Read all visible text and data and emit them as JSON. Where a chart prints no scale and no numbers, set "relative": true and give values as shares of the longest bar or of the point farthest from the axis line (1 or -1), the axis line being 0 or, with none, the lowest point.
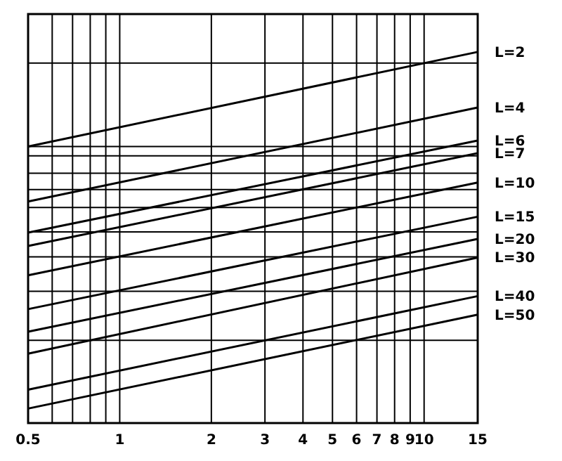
{
  "chart_data": {
    "type": "line",
    "relative": true,
    "log": "x",
    "grid": "x",
    "marker": "none",
    "line_style": "solid",
    "xlim": [
      0.5,
      15
    ],
    "xticks": [
      0.5,
      {
        "value": 0.6,
        "label": null
      },
      {
        "value": 0.7,
        "label": null
      },
      {
        "value": 0.8,
        "label": null
      },
      {
        "value": 0.9,
        "label": null
      },
      1,
      2,
      3,
      4,
      5,
      6,
      7,
      8,
      9,
      10,
      15
    ],
    "x": [
      0.5,
      15
    ],
    "series": [
      {
        "name": "L=2",
        "color": "#000000",
        "values": [
          0.745,
          1
        ]
      },
      {
        "name": "L=4",
        "color": "#000000",
        "values": [
          0.597,
          0.85
        ]
      },
      {
        "name": "L=6",
        "color": "#000000",
        "values": [
          0.513,
          0.761
        ]
      },
      {
        "name": "L=7",
        "color": "#000000",
        "values": [
          0.477,
          0.727
        ]
      },
      {
        "name": "L=10",
        "color": "#000000",
        "values": [
          0.398,
          0.648
        ]
      },
      {
        "name": "L=15",
        "color": "#000000",
        "values": [
          0.307,
          0.556
        ]
      },
      {
        "name": "L=20",
        "color": "#000000",
        "values": [
          0.246,
          0.496
        ]
      },
      {
        "name": "L=30",
        "color": "#000000",
        "values": [
          0.187,
          0.446
        ]
      },
      {
        "name": "L=40",
        "color": "#000000",
        "values": [
          0.09,
          0.342
        ]
      },
      {
        "name": "L=50",
        "color": "#000000",
        "values": [
          0.039,
          0.292
        ]
      }
    ],
    "ref_lines": [
      {
        "axis": "y",
        "value": 0.97,
        "label": null
      },
      {
        "axis": "y",
        "value": 0.745,
        "label": null
      },
      {
        "axis": "y",
        "value": 0.72,
        "label": null
      },
      {
        "axis": "y",
        "value": 0.673,
        "label": null
      },
      {
        "axis": "y",
        "value": 0.629,
        "label": null
      },
      {
        "axis": "y",
        "value": 0.581,
        "label": null
      },
      {
        "axis": "y",
        "value": 0.515,
        "label": null
      },
      {
        "axis": "y",
        "value": 0.448,
        "label": null
      },
      {
        "axis": "y",
        "value": 0.355,
        "label": null
      },
      {
        "axis": "y",
        "value": 0.223,
        "label": null
      }
    ]
  }
}
